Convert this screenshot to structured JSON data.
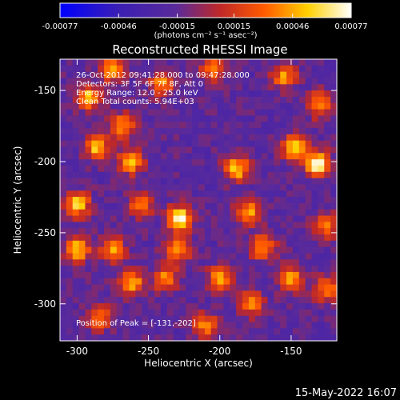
{
  "chart_data": {
    "type": "heatmap",
    "title": "Reconstructed RHESSI Image",
    "xlabel": "Heliocentric X (arcsec)",
    "ylabel": "Heliocentric Y (arcsec)",
    "xlim": [
      -312,
      -118
    ],
    "ylim": [
      -326,
      -128
    ],
    "x_ticks": [
      -300,
      -250,
      -200,
      -150
    ],
    "y_ticks": [
      -150,
      -200,
      -250,
      -300
    ],
    "x_tick_labels": [
      "-300",
      "-250",
      "-200",
      "-150"
    ],
    "y_tick_labels": [
      "-150",
      "-200",
      "-250",
      "-300"
    ],
    "colorbar": {
      "range": [
        -0.00077,
        0.00077
      ],
      "ticks": [
        -0.00077,
        -0.00046,
        -0.00015,
        0.00015,
        0.00046,
        0.00077
      ],
      "tick_labels": [
        "-0.00077",
        "-0.00046",
        "-0.00015",
        "0.00015",
        "0.00046",
        "0.00077"
      ],
      "units": "(photons cm⁻² s⁻¹ asec⁻²)",
      "colormap": [
        "#0000ff",
        "#3a1fb4",
        "#5a2a9a",
        "#c02828",
        "#ff5a00",
        "#ffd000",
        "#ffffff"
      ]
    },
    "annotations": [
      "26-Oct-2012 09:41:28.000 to 09:47:28.000",
      "Detectors: 3F 5F 6F 7F 8F, Att 0",
      "Energy Range: 12.0 - 25.0 keV",
      "Clean    Total counts: 5.94E+03"
    ],
    "peak_label": "Position of Peak = [-131,-202]",
    "peak": [
      -131,
      -202
    ],
    "hotspots": [
      {
        "x": -131,
        "y": -202,
        "value": 0.00077
      },
      {
        "x": -148,
        "y": -190,
        "value": 0.0006
      },
      {
        "x": -228,
        "y": -240,
        "value": 0.00072
      },
      {
        "x": -230,
        "y": -262,
        "value": 0.00052
      },
      {
        "x": -188,
        "y": -205,
        "value": 0.00055
      },
      {
        "x": -180,
        "y": -236,
        "value": 0.0005
      },
      {
        "x": -170,
        "y": -260,
        "value": 0.00045
      },
      {
        "x": -262,
        "y": -200,
        "value": 0.0005
      },
      {
        "x": -268,
        "y": -175,
        "value": 0.00042
      },
      {
        "x": -286,
        "y": -190,
        "value": 0.00055
      },
      {
        "x": -292,
        "y": -155,
        "value": 0.0005
      },
      {
        "x": -276,
        "y": -135,
        "value": 0.00045
      },
      {
        "x": -300,
        "y": -230,
        "value": 0.0006
      },
      {
        "x": -300,
        "y": -262,
        "value": 0.00055
      },
      {
        "x": -275,
        "y": -262,
        "value": 0.00045
      },
      {
        "x": -262,
        "y": -285,
        "value": 0.0005
      },
      {
        "x": -238,
        "y": -282,
        "value": 0.0004
      },
      {
        "x": -200,
        "y": -282,
        "value": 0.00045
      },
      {
        "x": -178,
        "y": -300,
        "value": 0.0004
      },
      {
        "x": -150,
        "y": -282,
        "value": 0.00045
      },
      {
        "x": -125,
        "y": -290,
        "value": 0.0004
      },
      {
        "x": -130,
        "y": -160,
        "value": 0.00045
      },
      {
        "x": -155,
        "y": -140,
        "value": 0.0004
      },
      {
        "x": -205,
        "y": -135,
        "value": 0.00035
      },
      {
        "x": -240,
        "y": -145,
        "value": 0.0004
      },
      {
        "x": -255,
        "y": -230,
        "value": 0.00035
      },
      {
        "x": -210,
        "y": -315,
        "value": 0.0004
      },
      {
        "x": -285,
        "y": -310,
        "value": 0.0004
      },
      {
        "x": -126,
        "y": -245,
        "value": 0.0004
      }
    ]
  },
  "footer": {
    "timestamp": "15-May-2022 16:07"
  }
}
